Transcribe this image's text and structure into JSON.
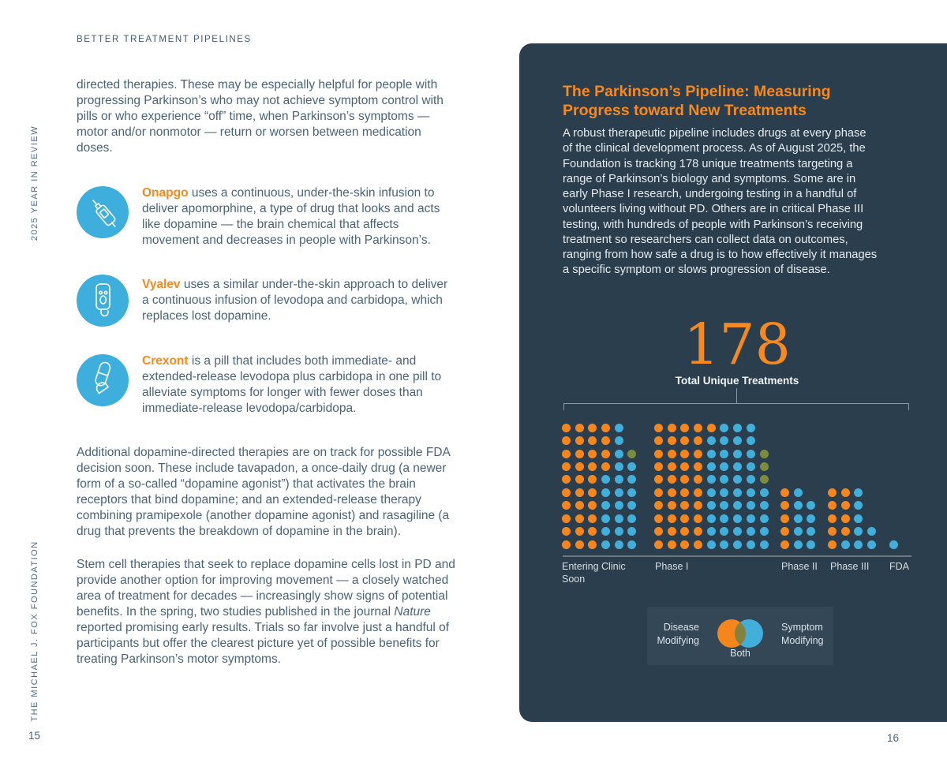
{
  "page": {
    "eyebrow": "BETTER TREATMENT PIPELINES",
    "sidebar_top": "2025 YEAR IN REVIEW",
    "sidebar_bottom": "THE MICHAEL J. FOX FOUNDATION",
    "left_page_number": "15",
    "right_page_number": "16"
  },
  "left_column": {
    "intro": "directed therapies. These may be especially helpful for people with progressing Parkinson’s who may not achieve symptom control with pills or who experience “off” time, when Parkinson’s symptoms — motor and/or nonmotor — return or worsen between medication doses.",
    "treatments": [
      {
        "name": "Onapgo",
        "icon": "injector-icon",
        "text": "uses a continuous, under-the-skin infusion to deliver apomorphine, a type of drug that looks and acts like dopamine — the brain chemical that affects movement and decreases in people with Parkinson’s."
      },
      {
        "name": "Vyalev",
        "icon": "infusion-pump-icon",
        "text": "uses a similar under-the-skin approach to deliver a continuous infusion of levodopa and carbidopa, which replaces lost dopamine."
      },
      {
        "name": "Crexont",
        "icon": "pills-icon",
        "text": "is a pill that includes both immediate- and extended-release levodopa plus carbidopa in one pill to alleviate symptoms for longer with fewer doses than immediate-release levodopa/carbidopa."
      }
    ],
    "paragraph_2": "Additional dopamine-directed therapies are on track for possible FDA decision soon. These include tavapadon, a once-daily drug (a newer form of a so-called “dopamine agonist”) that activates the brain receptors that bind dopamine; and an extended-release therapy combining pramipexole (another dopamine agonist) and rasagiline (a drug that prevents the breakdown of dopamine in the brain).",
    "paragraph_3_before": "Stem cell therapies that seek to replace dopamine cells lost in PD and provide another option for improving movement — a closely watched area of treatment for decades — increasingly show signs of potential benefits. In the spring, two studies published in the journal",
    "paragraph_3_italic": "Nature",
    "paragraph_3_after": "reported promising early results. Trials so far involve just a handful of participants but offer the clearest picture yet of possible benefits for treating Parkinson’s motor symptoms."
  },
  "panel": {
    "title": "The Parkinson’s Pipeline: Measuring Progress toward New Treatments",
    "body": "A robust therapeutic pipeline includes drugs at every phase of the clinical development process. As of August 2025, the Foundation is tracking 178 unique treatments targeting a range of Parkinson’s biology and symptoms. Some are in early Phase I research, undergoing testing in a handful of volunteers living without PD. Others are in critical Phase III testing, with hundreds of people with Parkinson’s receiving treatment so researchers can collect data on outcomes, ranging from how safe a drug is to how effectively it manages a specific symptom or slows progression of disease.",
    "stat_value": "178",
    "stat_label": "Total Unique Treatments"
  },
  "chart_data": {
    "type": "pictogram-dot-matrix",
    "title": "178 Total Unique Treatments",
    "total": 178,
    "dot_colors": {
      "O": "#f5861d",
      "B": "#42aeda",
      "G": "#7c8c3f"
    },
    "legend": [
      {
        "key": "O",
        "label": "Disease Modifying",
        "color": "#f5861d"
      },
      {
        "key": "B",
        "label": "Symptom Modifying",
        "color": "#42aeda"
      },
      {
        "key": "G",
        "label": "Both",
        "color": "#7c8c3f"
      }
    ],
    "groups": [
      {
        "label": "Entering Clinic Soon",
        "total": 58,
        "disease_modifying": 34,
        "symptom_modifying": 23,
        "both": 1,
        "rows": [
          "OOOOB",
          "OOOOB",
          "OOOOBG",
          "OOOOBB",
          "OOOBBB",
          "OOOBBB",
          "OOOBBB",
          "OOOBBB",
          "OOOBBB",
          "OOOBBB"
        ]
      },
      {
        "label": "Phase I",
        "total": 88,
        "disease_modifying": 41,
        "symptom_modifying": 44,
        "both": 3,
        "rows": [
          "OOOOOBBB",
          "OOOOBBBB",
          "OOOOBBBBG",
          "OOOOBBBBG",
          "OOOOBBBBG",
          "OOOOBBBBB",
          "OOOOBBBBB",
          "OOOOBBBBB",
          "OOOOBBBBB",
          "OOOOBBBBB"
        ]
      },
      {
        "label": "Phase II",
        "total": 14,
        "disease_modifying": 5,
        "symptom_modifying": 9,
        "both": 0,
        "rows": [
          "",
          "",
          "",
          "",
          "",
          "OB",
          "OBB",
          "OBB",
          "OBB",
          "OBB"
        ]
      },
      {
        "label": "Phase III",
        "total": 17,
        "disease_modifying": 9,
        "symptom_modifying": 8,
        "both": 0,
        "rows": [
          "",
          "",
          "",
          "",
          "",
          "OOB",
          "OOB",
          "OOB",
          "OOBB",
          "OBBB"
        ]
      },
      {
        "label": "FDA",
        "total": 1,
        "disease_modifying": 0,
        "symptom_modifying": 1,
        "both": 0,
        "rows": [
          "",
          "",
          "",
          "",
          "",
          "",
          "",
          "",
          "",
          "B"
        ]
      }
    ]
  }
}
